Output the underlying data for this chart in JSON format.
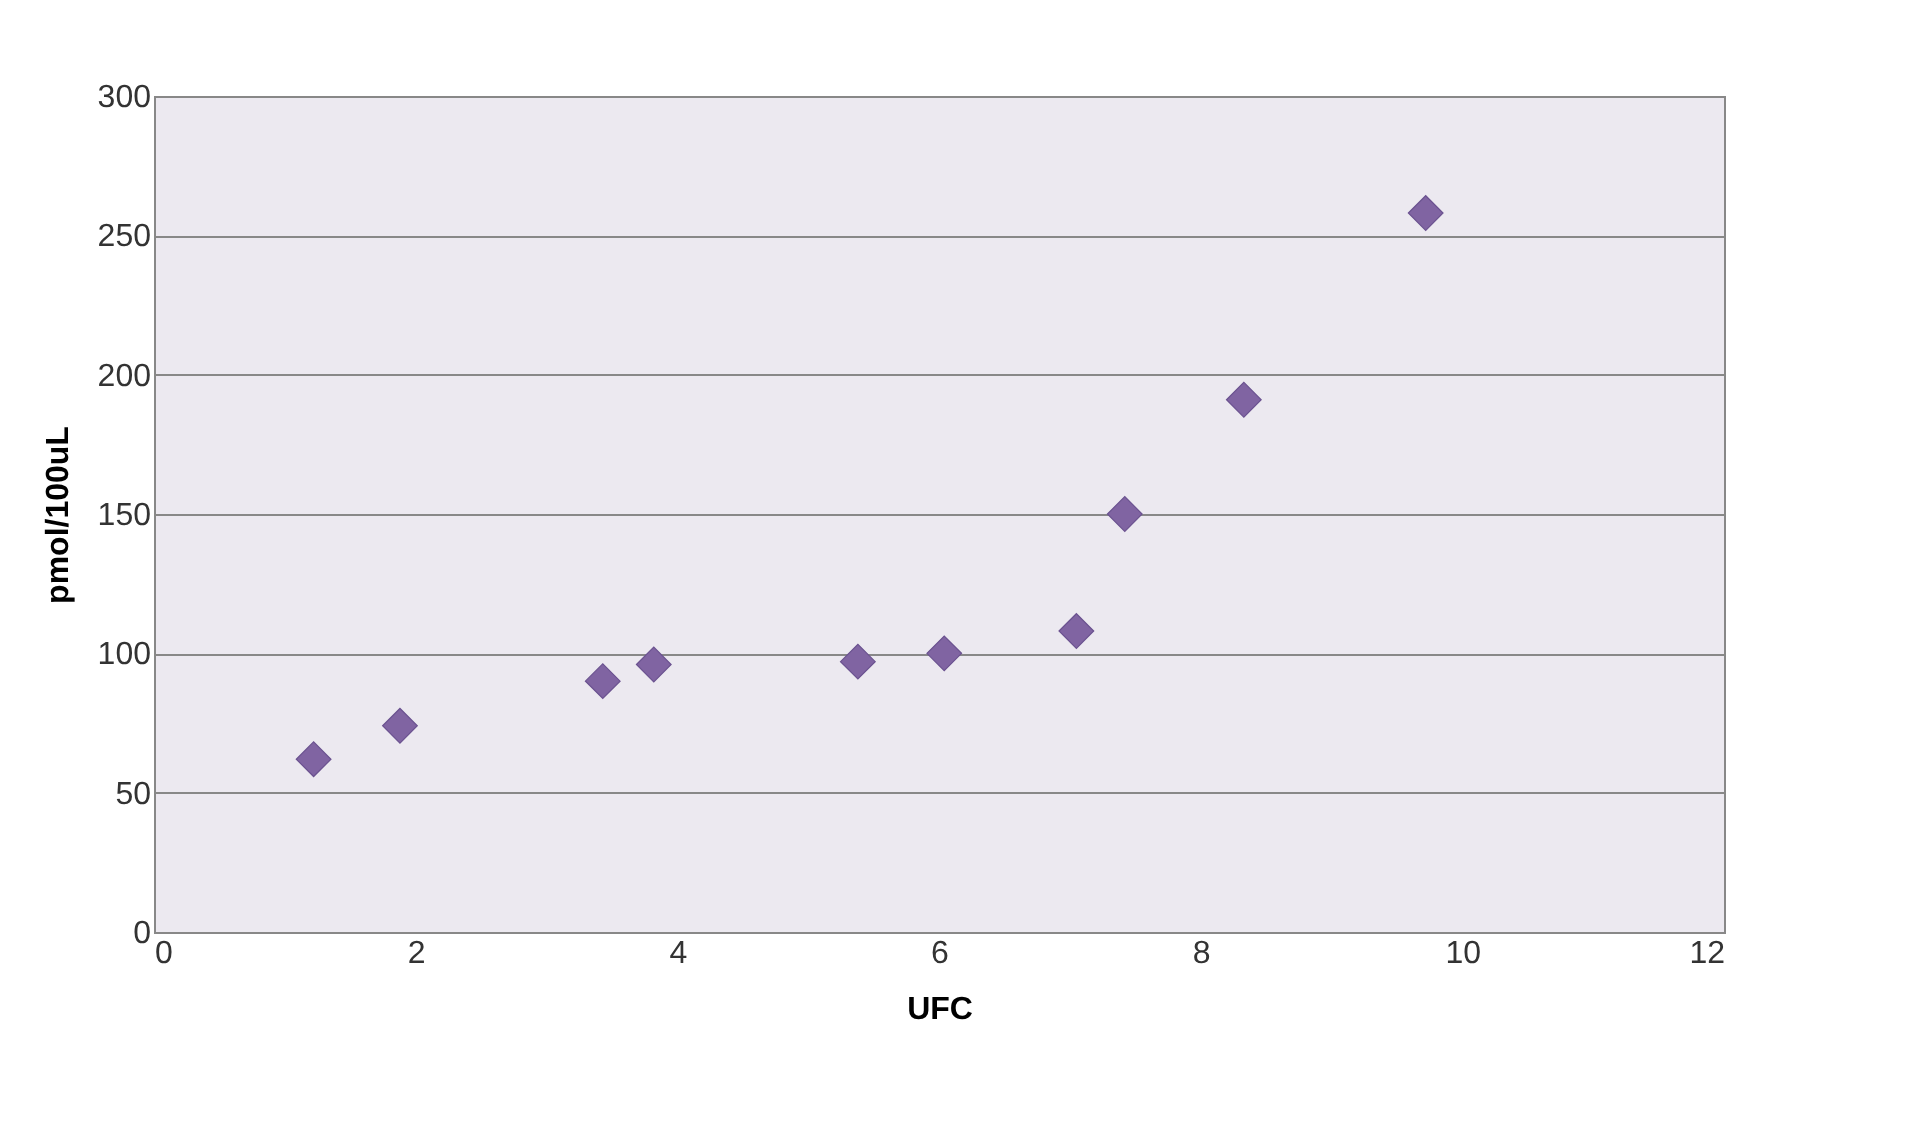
{
  "chart_data": {
    "type": "scatter",
    "xlabel": "UFC",
    "ylabel": "pmol/100uL",
    "x": [
      1.22,
      1.88,
      3.43,
      3.82,
      5.38,
      6.04,
      7.05,
      7.42,
      8.33,
      9.72
    ],
    "series": [
      {
        "color": "#8064a2",
        "values": [
          62,
          74,
          90,
          96,
          97,
          100,
          108,
          150,
          191,
          258
        ]
      }
    ],
    "xlim": [
      0,
      12
    ],
    "xticks": [
      0,
      2,
      4,
      6,
      8,
      10,
      12
    ],
    "ylim": [
      0,
      300
    ],
    "yticks": [
      0,
      50,
      100,
      150,
      200,
      250,
      300
    ],
    "grid": "y",
    "marker": "diamond"
  }
}
